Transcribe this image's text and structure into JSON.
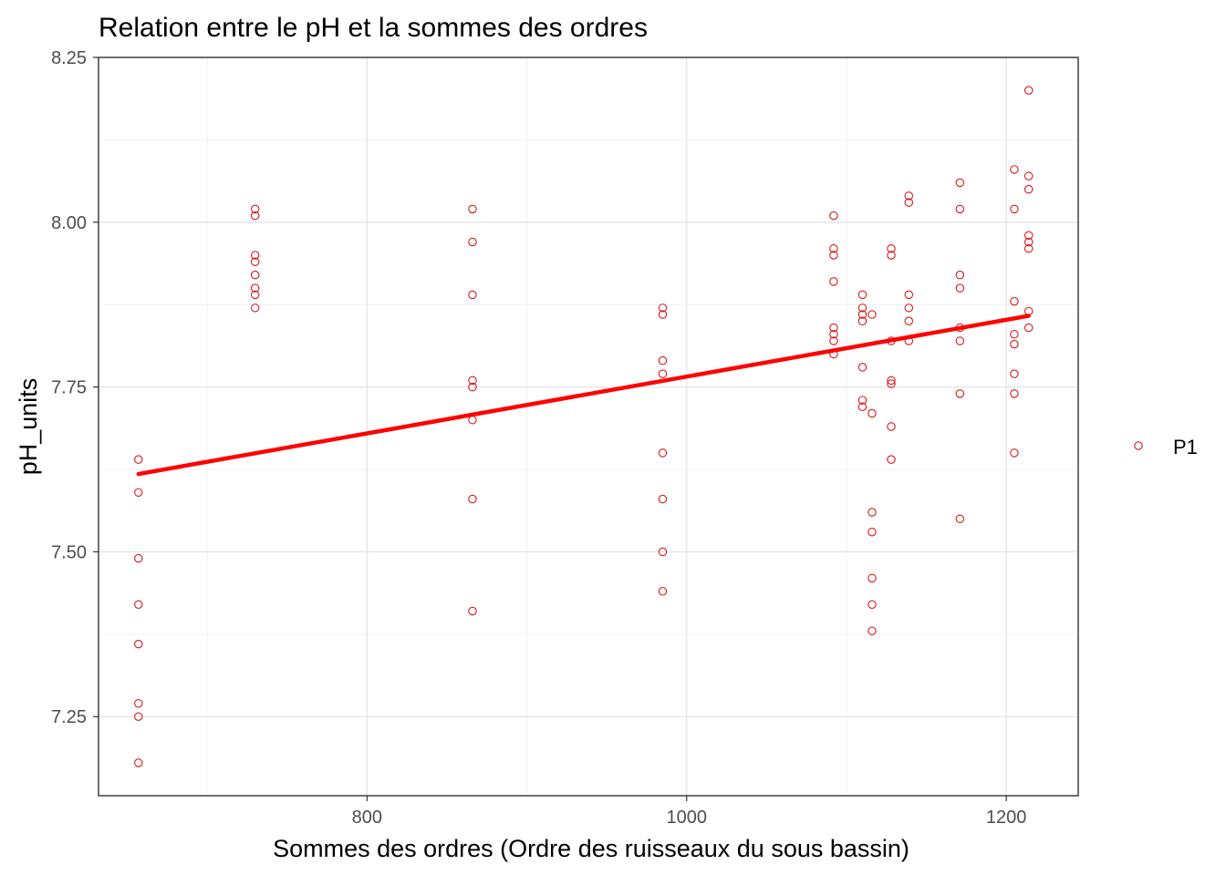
{
  "chart_data": {
    "type": "scatter",
    "title": "Relation entre le pH et la sommes des ordres",
    "xlabel": "Sommes des ordres (Ordre des ruisseaux du sous bassin)",
    "ylabel": "pH_units",
    "xlim": [
      632,
      1245
    ],
    "ylim": [
      7.13,
      8.25
    ],
    "x_ticks": [
      800,
      1000,
      1200
    ],
    "x_tick_labels": [
      "800",
      "1000",
      "1200"
    ],
    "y_ticks": [
      7.25,
      7.5,
      7.75,
      8.0,
      8.25
    ],
    "y_tick_labels": [
      "7.25",
      "7.50",
      "7.75",
      "8.00",
      "8.25"
    ],
    "grid": true,
    "legend_position": "right",
    "colors": {
      "points": "#d7191c",
      "trend": "#ff0000"
    },
    "series": [
      {
        "name": "P1",
        "points": [
          [
            657,
            7.64
          ],
          [
            657,
            7.59
          ],
          [
            657,
            7.49
          ],
          [
            657,
            7.42
          ],
          [
            657,
            7.36
          ],
          [
            657,
            7.27
          ],
          [
            657,
            7.25
          ],
          [
            657,
            7.18
          ],
          [
            730,
            8.02
          ],
          [
            730,
            8.01
          ],
          [
            730,
            7.95
          ],
          [
            730,
            7.94
          ],
          [
            730,
            7.92
          ],
          [
            730,
            7.9
          ],
          [
            730,
            7.89
          ],
          [
            730,
            7.87
          ],
          [
            866,
            8.02
          ],
          [
            866,
            7.97
          ],
          [
            866,
            7.89
          ],
          [
            866,
            7.76
          ],
          [
            866,
            7.75
          ],
          [
            866,
            7.7
          ],
          [
            866,
            7.58
          ],
          [
            866,
            7.41
          ],
          [
            985,
            7.87
          ],
          [
            985,
            7.86
          ],
          [
            985,
            7.79
          ],
          [
            985,
            7.77
          ],
          [
            985,
            7.65
          ],
          [
            985,
            7.58
          ],
          [
            985,
            7.5
          ],
          [
            985,
            7.44
          ],
          [
            1092,
            8.01
          ],
          [
            1092,
            7.96
          ],
          [
            1092,
            7.95
          ],
          [
            1092,
            7.91
          ],
          [
            1092,
            7.84
          ],
          [
            1092,
            7.83
          ],
          [
            1092,
            7.82
          ],
          [
            1092,
            7.8
          ],
          [
            1110,
            7.89
          ],
          [
            1110,
            7.87
          ],
          [
            1110,
            7.86
          ],
          [
            1110,
            7.85
          ],
          [
            1110,
            7.78
          ],
          [
            1110,
            7.73
          ],
          [
            1110,
            7.72
          ],
          [
            1116,
            7.86
          ],
          [
            1116,
            7.71
          ],
          [
            1116,
            7.56
          ],
          [
            1116,
            7.53
          ],
          [
            1116,
            7.46
          ],
          [
            1116,
            7.42
          ],
          [
            1116,
            7.38
          ],
          [
            1128,
            7.96
          ],
          [
            1128,
            7.95
          ],
          [
            1128,
            7.82
          ],
          [
            1128,
            7.76
          ],
          [
            1128,
            7.755
          ],
          [
            1128,
            7.69
          ],
          [
            1128,
            7.64
          ],
          [
            1139,
            8.04
          ],
          [
            1139,
            8.03
          ],
          [
            1139,
            7.89
          ],
          [
            1139,
            7.87
          ],
          [
            1139,
            7.85
          ],
          [
            1139,
            7.82
          ],
          [
            1171,
            8.06
          ],
          [
            1171,
            8.02
          ],
          [
            1171,
            7.92
          ],
          [
            1171,
            7.9
          ],
          [
            1171,
            7.84
          ],
          [
            1171,
            7.82
          ],
          [
            1171,
            7.74
          ],
          [
            1171,
            7.55
          ],
          [
            1205,
            8.08
          ],
          [
            1205,
            8.02
          ],
          [
            1205,
            7.88
          ],
          [
            1205,
            7.83
          ],
          [
            1205,
            7.815
          ],
          [
            1205,
            7.77
          ],
          [
            1205,
            7.74
          ],
          [
            1205,
            7.65
          ],
          [
            1214,
            8.2
          ],
          [
            1214,
            8.07
          ],
          [
            1214,
            8.05
          ],
          [
            1214,
            7.98
          ],
          [
            1214,
            7.97
          ],
          [
            1214,
            7.96
          ],
          [
            1214,
            7.865
          ],
          [
            1214,
            7.84
          ]
        ]
      }
    ],
    "trend_line": {
      "x": [
        657,
        1214
      ],
      "y": [
        7.618,
        7.858
      ]
    }
  }
}
